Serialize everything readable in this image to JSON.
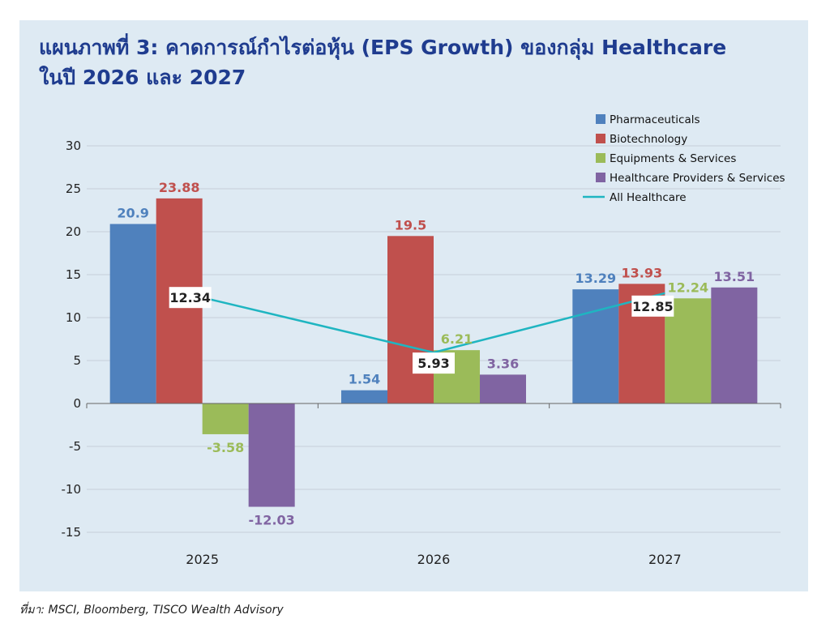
{
  "chart_data": {
    "type": "bar",
    "title_line1": "แผนภาพที่ 3: คาดการณ์กำไรต่อหุ้น (EPS Growth) ของกลุ่ม Healthcare",
    "title_line2": "ในปี 2026 และ 2027",
    "categories": [
      "2025",
      "2026",
      "2027"
    ],
    "ylim": [
      -15,
      30
    ],
    "yticks": [
      30,
      25,
      20,
      15,
      10,
      5,
      0,
      -5,
      -10,
      -15
    ],
    "grid": true,
    "legend_position": "top-right",
    "series": [
      {
        "name": "Pharmaceuticals",
        "color": "#4f81bd",
        "values": [
          20.9,
          1.54,
          13.29
        ],
        "labels": [
          "20.9",
          "1.54",
          "13.29"
        ]
      },
      {
        "name": "Biotechnology",
        "color": "#c0504d",
        "values": [
          23.88,
          19.5,
          13.93
        ],
        "labels": [
          "23.88",
          "19.5",
          "13.93"
        ]
      },
      {
        "name": "Equipments & Services",
        "color": "#9bbb59",
        "values": [
          -3.58,
          6.21,
          12.24
        ],
        "labels": [
          "-3.58",
          "6.21",
          "12.24"
        ]
      },
      {
        "name": "Healthcare Providers & Services",
        "color": "#8064a2",
        "values": [
          -12.03,
          3.36,
          13.51
        ],
        "labels": [
          "-12.03",
          "3.36",
          "13.51"
        ]
      }
    ],
    "line_series": {
      "name": "All Healthcare",
      "color": "#1fb5c1",
      "values": [
        12.34,
        5.93,
        12.85
      ],
      "labels": [
        "12.34",
        "5.93",
        "12.85"
      ]
    }
  },
  "source": "ที่มา: MSCI, Bloomberg, TISCO Wealth Advisory"
}
